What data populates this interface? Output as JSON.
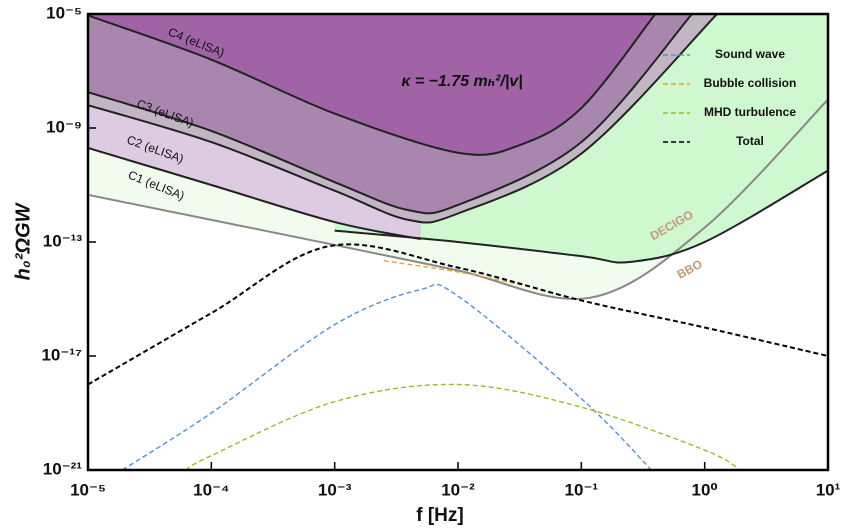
{
  "chart_data": {
    "type": "line",
    "xlabel": "f [Hz]",
    "ylabel": "h₀²ΩGW",
    "annotation": "κ = −1.75 mₕ²/|v|",
    "xscale": "log",
    "yscale": "log",
    "xlim": [
      1e-05,
      10
    ],
    "ylim": [
      1e-21,
      1e-05
    ],
    "xticks": [
      {
        "value": 1e-05,
        "label": "10⁻⁵"
      },
      {
        "value": 0.0001,
        "label": "10⁻⁴"
      },
      {
        "value": 0.001,
        "label": "10⁻³"
      },
      {
        "value": 0.01,
        "label": "10⁻²"
      },
      {
        "value": 0.1,
        "label": "10⁻¹"
      },
      {
        "value": 1,
        "label": "10⁰"
      },
      {
        "value": 10,
        "label": "10¹"
      }
    ],
    "yticks": [
      {
        "value": 1e-21,
        "label": "10⁻²¹"
      },
      {
        "value": 1e-17,
        "label": "10⁻¹⁷"
      },
      {
        "value": 1e-13,
        "label": "10⁻¹³"
      },
      {
        "value": 1e-09,
        "label": "10⁻⁹"
      },
      {
        "value": 1e-05,
        "label": "10⁻⁵"
      }
    ],
    "legend": "upper right",
    "sensitivity": [
      {
        "name": "BBO",
        "color": "#888888",
        "fill": "#f1fcee",
        "x": [
          1e-05,
          0.001,
          0.01,
          0.117,
          1,
          10
        ],
        "y": [
          4.5e-12,
          7.9e-14,
          1e-14,
          1.1e-15,
          3.2e-13,
          1e-08
        ]
      },
      {
        "name": "DECIGO",
        "color": "#222222",
        "fill": "#d0f8d0",
        "x": [
          0.001,
          0.01,
          0.1,
          0.25,
          1,
          10
        ],
        "y": [
          2.5e-13,
          1e-13,
          3.2e-14,
          2e-14,
          1e-13,
          3.2e-11
        ]
      },
      {
        "name": "C1 (eLISA)",
        "color": "#222222",
        "fill": "#dccbe1",
        "x": [
          1e-05,
          0.0001,
          0.001,
          0.005
        ],
        "y": [
          2e-10,
          1e-11,
          5e-13,
          1.26e-13
        ]
      },
      {
        "name": "C2 (eLISA)",
        "color": "#222222",
        "fill": "#c2b6c5",
        "x": [
          1e-05,
          0.0001,
          0.001,
          0.004,
          0.01,
          0.1,
          1.26
        ],
        "y": [
          6.3e-09,
          3.2e-10,
          6.3e-12,
          5.9e-13,
          1e-12,
          1.26e-10,
          1e-05
        ]
      },
      {
        "name": "C3 (eLISA)",
        "color": "#222222",
        "fill": "#a986ae",
        "x": [
          1e-05,
          0.0001,
          0.001,
          0.004,
          0.01,
          0.1,
          0.79
        ],
        "y": [
          1.8e-08,
          7.9e-10,
          1.26e-11,
          1.3e-12,
          2e-12,
          3.2e-10,
          1e-05
        ]
      },
      {
        "name": "C4 (eLISA)",
        "color": "#222222",
        "fill": "#a064a6",
        "x": [
          1e-05,
          0.0001,
          0.001,
          0.01,
          0.0316,
          0.1,
          0.398
        ],
        "y": [
          8.9e-06,
          2.5e-07,
          3.2e-09,
          1.35e-10,
          2.5e-10,
          5e-09,
          1e-05
        ]
      }
    ],
    "series": [
      {
        "name": "Sound wave",
        "color": "#5b8fd0",
        "x": [
          1.9e-05,
          0.0001,
          0.001,
          0.0049,
          0.01,
          0.1,
          0.37
        ],
        "y": [
          1e-21,
          1e-19,
          1.26e-16,
          2.1e-15,
          1.26e-15,
          3.2e-19,
          1e-21
        ]
      },
      {
        "name": "Bubble collision",
        "color": "#e8a33a",
        "x": [
          0.0025,
          0.01,
          0.032
        ],
        "y": [
          2.2e-14,
          8.9e-15,
          3.2e-15
        ]
      },
      {
        "name": "MHD turbulence",
        "color": "#9bb83a",
        "x": [
          6.2e-05,
          0.0001,
          0.001,
          0.01,
          0.1,
          1,
          1.95
        ],
        "y": [
          1e-21,
          3.2e-21,
          2.5e-19,
          1e-18,
          1.6e-19,
          5e-21,
          1e-21
        ]
      },
      {
        "name": "Total",
        "color": "#000000",
        "x": [
          1e-05,
          0.0001,
          0.00091,
          0.01,
          0.1,
          1,
          10
        ],
        "y": [
          1e-18,
          3.2e-16,
          7.2e-14,
          1.26e-14,
          8.9e-16,
          1e-16,
          1e-17
        ]
      }
    ]
  }
}
